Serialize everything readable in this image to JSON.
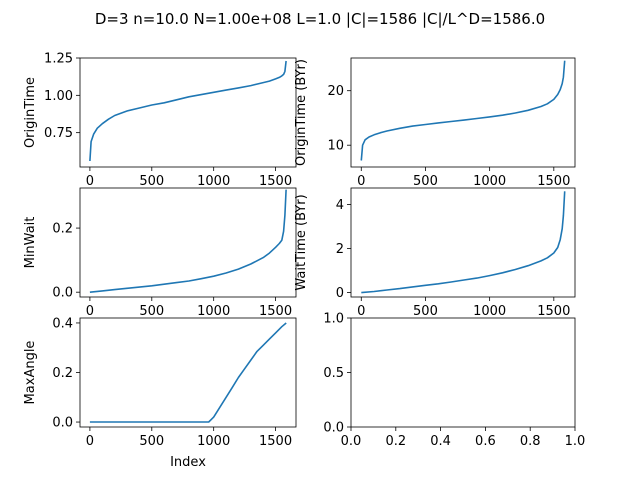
{
  "figure": {
    "suptitle": "D=3 n=10.0 N=1.00e+08 L=1.0 |C|=1586 |C|/L^D=1586.0"
  },
  "chart_data": [
    {
      "type": "line",
      "ylabel": "OriginTime",
      "xlabel": "",
      "xlim": [
        -80,
        1665
      ],
      "ylim": [
        0.52,
        1.25
      ],
      "xticks": [
        0,
        500,
        1000,
        1500
      ],
      "yticks": [
        0.75,
        1.0,
        1.25
      ],
      "ytick_format": 2,
      "color": "#1f77b4",
      "x": [
        0,
        10,
        30,
        60,
        100,
        150,
        200,
        300,
        400,
        500,
        600,
        700,
        800,
        900,
        1000,
        1100,
        1200,
        1300,
        1400,
        1450,
        1500,
        1530,
        1550,
        1565,
        1575,
        1585
      ],
      "y": [
        0.56,
        0.69,
        0.74,
        0.78,
        0.81,
        0.84,
        0.865,
        0.895,
        0.915,
        0.935,
        0.95,
        0.97,
        0.99,
        1.005,
        1.02,
        1.035,
        1.05,
        1.065,
        1.085,
        1.095,
        1.11,
        1.12,
        1.13,
        1.14,
        1.16,
        1.23
      ]
    },
    {
      "type": "line",
      "ylabel": "OriginTime (BYr)",
      "xlabel": "",
      "xlim": [
        -80,
        1665
      ],
      "ylim": [
        6,
        26
      ],
      "xticks": [
        0,
        500,
        1000,
        1500
      ],
      "yticks": [
        10,
        20
      ],
      "ytick_format": 0,
      "color": "#1f77b4",
      "x": [
        0,
        10,
        30,
        60,
        100,
        150,
        200,
        300,
        400,
        500,
        600,
        700,
        800,
        900,
        1000,
        1100,
        1200,
        1300,
        1400,
        1450,
        1500,
        1530,
        1550,
        1565,
        1575,
        1585
      ],
      "y": [
        7.2,
        10.0,
        11.0,
        11.5,
        11.9,
        12.3,
        12.6,
        13.1,
        13.5,
        13.8,
        14.1,
        14.35,
        14.6,
        14.9,
        15.2,
        15.5,
        15.9,
        16.4,
        17.1,
        17.6,
        18.4,
        19.3,
        20.2,
        21.3,
        22.5,
        25.5
      ]
    },
    {
      "type": "line",
      "ylabel": "MinWait",
      "xlabel": "",
      "xlim": [
        -80,
        1665
      ],
      "ylim": [
        -0.015,
        0.325
      ],
      "xticks": [
        0,
        500,
        1000,
        1500
      ],
      "yticks": [
        0.0,
        0.2
      ],
      "ytick_format": 1,
      "color": "#1f77b4",
      "x": [
        0,
        100,
        200,
        300,
        400,
        500,
        600,
        700,
        800,
        900,
        1000,
        1100,
        1200,
        1300,
        1400,
        1450,
        1500,
        1530,
        1550,
        1565,
        1575,
        1585
      ],
      "y": [
        0.0,
        0.004,
        0.008,
        0.012,
        0.016,
        0.02,
        0.025,
        0.03,
        0.035,
        0.042,
        0.05,
        0.06,
        0.072,
        0.088,
        0.108,
        0.122,
        0.14,
        0.152,
        0.162,
        0.19,
        0.24,
        0.32
      ]
    },
    {
      "type": "line",
      "ylabel": "WaitTime (BYr)",
      "xlabel": "",
      "xlim": [
        -80,
        1665
      ],
      "ylim": [
        -0.2,
        4.75
      ],
      "xticks": [
        0,
        500,
        1000,
        1500
      ],
      "yticks": [
        0,
        2,
        4
      ],
      "ytick_format": 0,
      "color": "#1f77b4",
      "x": [
        0,
        100,
        200,
        300,
        400,
        500,
        600,
        700,
        800,
        900,
        1000,
        1100,
        1200,
        1300,
        1400,
        1450,
        1500,
        1530,
        1550,
        1565,
        1575,
        1585
      ],
      "y": [
        0.0,
        0.05,
        0.12,
        0.18,
        0.26,
        0.33,
        0.4,
        0.48,
        0.57,
        0.66,
        0.77,
        0.9,
        1.05,
        1.22,
        1.44,
        1.58,
        1.8,
        2.05,
        2.4,
        2.9,
        3.5,
        4.6
      ]
    },
    {
      "type": "line",
      "ylabel": "MaxAngle",
      "xlabel": "Index",
      "xlim": [
        -80,
        1665
      ],
      "ylim": [
        -0.02,
        0.42
      ],
      "xticks": [
        0,
        500,
        1000,
        1500
      ],
      "yticks": [
        0.0,
        0.2,
        0.4
      ],
      "ytick_format": 1,
      "color": "#1f77b4",
      "x": [
        0,
        200,
        400,
        600,
        800,
        960,
        980,
        1000,
        1050,
        1100,
        1150,
        1200,
        1250,
        1300,
        1350,
        1400,
        1450,
        1500,
        1550,
        1586
      ],
      "y": [
        0.0,
        0.0,
        0.0,
        0.0,
        0.0,
        0.0,
        0.01,
        0.02,
        0.06,
        0.1,
        0.14,
        0.18,
        0.215,
        0.25,
        0.285,
        0.31,
        0.335,
        0.36,
        0.385,
        0.4
      ]
    },
    {
      "type": "empty",
      "ylabel": "",
      "xlabel": "",
      "xlim": [
        0.0,
        1.0
      ],
      "ylim": [
        0.0,
        1.0
      ],
      "xticks": [
        0.0,
        0.2,
        0.4,
        0.6,
        0.8,
        1.0
      ],
      "yticks": [
        0.0,
        0.5,
        1.0
      ],
      "xtick_format": 1,
      "ytick_format": 1,
      "color": "#1f77b4",
      "x": [],
      "y": []
    }
  ]
}
